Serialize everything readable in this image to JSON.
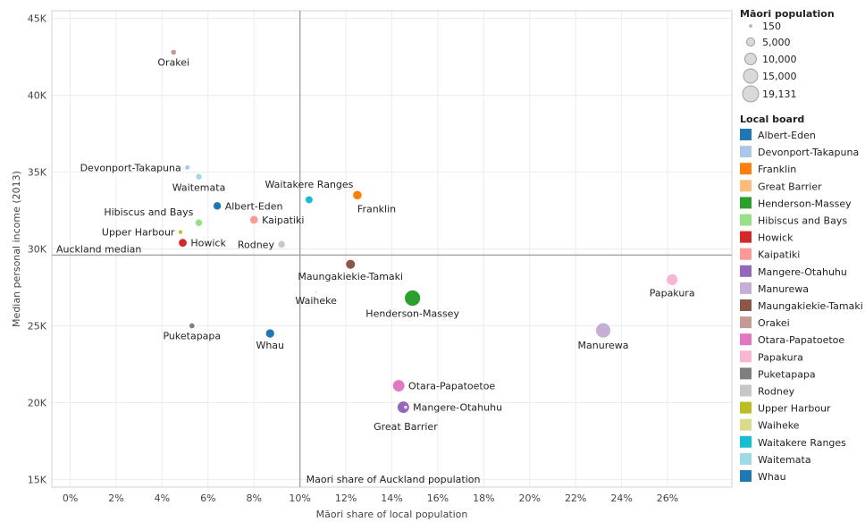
{
  "chart_data": {
    "type": "scatter",
    "xlabel": "Māori share of local population",
    "ylabel": "Median personal income (2013)",
    "xlim": [
      -0.8,
      28.8
    ],
    "ylim": [
      14500,
      45500
    ],
    "x_ticks": [
      0,
      2,
      4,
      6,
      8,
      10,
      12,
      14,
      16,
      18,
      20,
      22,
      24,
      26
    ],
    "x_tick_labels": [
      "0%",
      "2%",
      "4%",
      "6%",
      "8%",
      "10%",
      "12%",
      "14%",
      "16%",
      "18%",
      "20%",
      "22%",
      "24%",
      "26%"
    ],
    "y_ticks": [
      15000,
      20000,
      25000,
      30000,
      35000,
      40000,
      45000
    ],
    "y_tick_labels": [
      "15K",
      "20K",
      "25K",
      "30K",
      "35K",
      "40K",
      "45K"
    ],
    "grid": true,
    "reference_lines": {
      "vertical": {
        "x": 10.0,
        "label": "Maori share of Auckland population"
      },
      "horizontal": {
        "y": 29600,
        "label": "Auckland median"
      }
    },
    "size_legend": {
      "title": "Māori population",
      "entries": [
        {
          "label": "150",
          "value": 150
        },
        {
          "label": "5,000",
          "value": 5000
        },
        {
          "label": "10,000",
          "value": 10000
        },
        {
          "label": "15,000",
          "value": 15000
        },
        {
          "label": "19,131",
          "value": 19131
        }
      ]
    },
    "color_legend": {
      "title": "Local board",
      "entries": [
        {
          "label": "Albert-Eden",
          "color": "#1f77b4"
        },
        {
          "label": "Devonport-Takapuna",
          "color": "#aec7e8"
        },
        {
          "label": "Franklin",
          "color": "#ff7f0e"
        },
        {
          "label": "Great Barrier",
          "color": "#ffbb78"
        },
        {
          "label": "Henderson-Massey",
          "color": "#2ca02c"
        },
        {
          "label": "Hibiscus and Bays",
          "color": "#98df8a"
        },
        {
          "label": "Howick",
          "color": "#d62728"
        },
        {
          "label": "Kaipatiki",
          "color": "#ff9896"
        },
        {
          "label": "Mangere-Otahuhu",
          "color": "#9467bd"
        },
        {
          "label": "Manurewa",
          "color": "#c5b0d5"
        },
        {
          "label": "Maungakiekie-Tamaki",
          "color": "#8c564b"
        },
        {
          "label": "Orakei",
          "color": "#c49c94"
        },
        {
          "label": "Otara-Papatoetoe",
          "color": "#e377c2"
        },
        {
          "label": "Papakura",
          "color": "#f7b6d2"
        },
        {
          "label": "Puketapapa",
          "color": "#7f7f7f"
        },
        {
          "label": "Rodney",
          "color": "#c7c7c7"
        },
        {
          "label": "Upper Harbour",
          "color": "#bcbd22"
        },
        {
          "label": "Waiheke",
          "color": "#dbdb8d"
        },
        {
          "label": "Waitakere Ranges",
          "color": "#17becf"
        },
        {
          "label": "Waitemata",
          "color": "#9edae5"
        },
        {
          "label": "Whau",
          "color": "#1f77b4"
        }
      ]
    },
    "points": [
      {
        "name": "Orakei",
        "x": 4.5,
        "y": 42800,
        "size": 2500,
        "color": "#c49c94",
        "label_pos": "below"
      },
      {
        "name": "Devonport-Takapuna",
        "x": 5.1,
        "y": 35300,
        "size": 2000,
        "color": "#aec7e8",
        "label_pos": "left"
      },
      {
        "name": "Waitemata",
        "x": 5.6,
        "y": 34700,
        "size": 3000,
        "color": "#9edae5",
        "label_pos": "below"
      },
      {
        "name": "Albert-Eden",
        "x": 6.4,
        "y": 32800,
        "size": 5000,
        "color": "#1f77b4",
        "label_pos": "right"
      },
      {
        "name": "Hibiscus and Bays",
        "x": 5.6,
        "y": 31700,
        "size": 4000,
        "color": "#98df8a",
        "label_pos": "above-left"
      },
      {
        "name": "Upper Harbour",
        "x": 4.8,
        "y": 31100,
        "size": 1500,
        "color": "#bcbd22",
        "label_pos": "left"
      },
      {
        "name": "Howick",
        "x": 4.9,
        "y": 30400,
        "size": 5500,
        "color": "#d62728",
        "label_pos": "right"
      },
      {
        "name": "Kaipatiki",
        "x": 8.0,
        "y": 31900,
        "size": 5500,
        "color": "#ff9896",
        "label_pos": "right"
      },
      {
        "name": "Rodney",
        "x": 9.2,
        "y": 30300,
        "size": 4000,
        "color": "#c7c7c7",
        "label_pos": "left"
      },
      {
        "name": "Waitakere Ranges",
        "x": 10.4,
        "y": 33200,
        "size": 4500,
        "color": "#17becf",
        "label_pos": "above"
      },
      {
        "name": "Franklin",
        "x": 12.5,
        "y": 33500,
        "size": 6500,
        "color": "#ff7f0e",
        "label_pos": "below-right"
      },
      {
        "name": "Maungakiekie-Tamaki",
        "x": 12.2,
        "y": 29000,
        "size": 7000,
        "color": "#8c564b",
        "label_pos": "below"
      },
      {
        "name": "Waiheke",
        "x": 10.7,
        "y": 27200,
        "size": 150,
        "color": "#dbdb8d",
        "label_pos": "below"
      },
      {
        "name": "Henderson-Massey",
        "x": 14.9,
        "y": 26800,
        "size": 19131,
        "color": "#2ca02c",
        "label_pos": "below"
      },
      {
        "name": "Papakura",
        "x": 26.2,
        "y": 28000,
        "size": 10000,
        "color": "#f7b6d2",
        "label_pos": "below"
      },
      {
        "name": "Manurewa",
        "x": 23.2,
        "y": 24700,
        "size": 17000,
        "color": "#c5b0d5",
        "label_pos": "below"
      },
      {
        "name": "Puketapapa",
        "x": 5.3,
        "y": 25000,
        "size": 2500,
        "color": "#7f7f7f",
        "label_pos": "below"
      },
      {
        "name": "Whau",
        "x": 8.7,
        "y": 24500,
        "size": 6000,
        "color": "#1f77b4",
        "label_pos": "below"
      },
      {
        "name": "Otara-Papatoetoe",
        "x": 14.3,
        "y": 21100,
        "size": 11000,
        "color": "#e377c2",
        "label_pos": "right"
      },
      {
        "name": "Mangere-Otahuhu",
        "x": 14.5,
        "y": 19700,
        "size": 11000,
        "color": "#9467bd",
        "label_pos": "right"
      },
      {
        "name": "Great Barrier",
        "x": 14.6,
        "y": 19700,
        "size": 100,
        "color": "#ffbb78",
        "label_pos": "below-far"
      }
    ]
  }
}
